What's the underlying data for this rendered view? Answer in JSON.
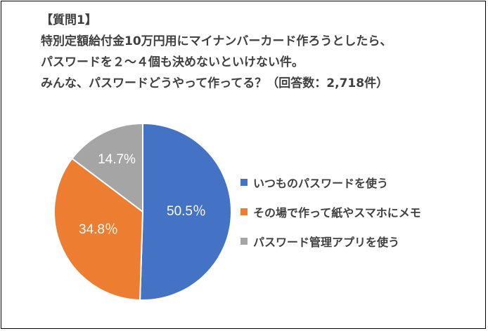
{
  "title": {
    "lines": [
      "【質問1】",
      "特別定額給付金10万円用にマイナンバーカード作ろうとしたら、",
      "パスワードを２～４個も決めないといけない件。",
      "みんな、パスワードどうやって作ってる？（回答数：2,718件）"
    ]
  },
  "chart_data": {
    "type": "pie",
    "title": "【質問1】 特別定額給付金10万円用にマイナンバーカード作ろうとしたら、パスワードを２～４個も決めないといけない件。みんな、パスワードどうやって作ってる？（回答数：2,718件）",
    "categories": [
      "いつものパスワードを使う",
      "その場で作って紙やスマホにメモ",
      "パスワード管理アプリを使う"
    ],
    "values": [
      50.5,
      34.8,
      14.7
    ],
    "data_labels": [
      "50.5％",
      "34.8％",
      "14.7%"
    ],
    "colors": [
      "#4472C4",
      "#ED7D31",
      "#A5A5A5"
    ],
    "legend_position": "right"
  }
}
